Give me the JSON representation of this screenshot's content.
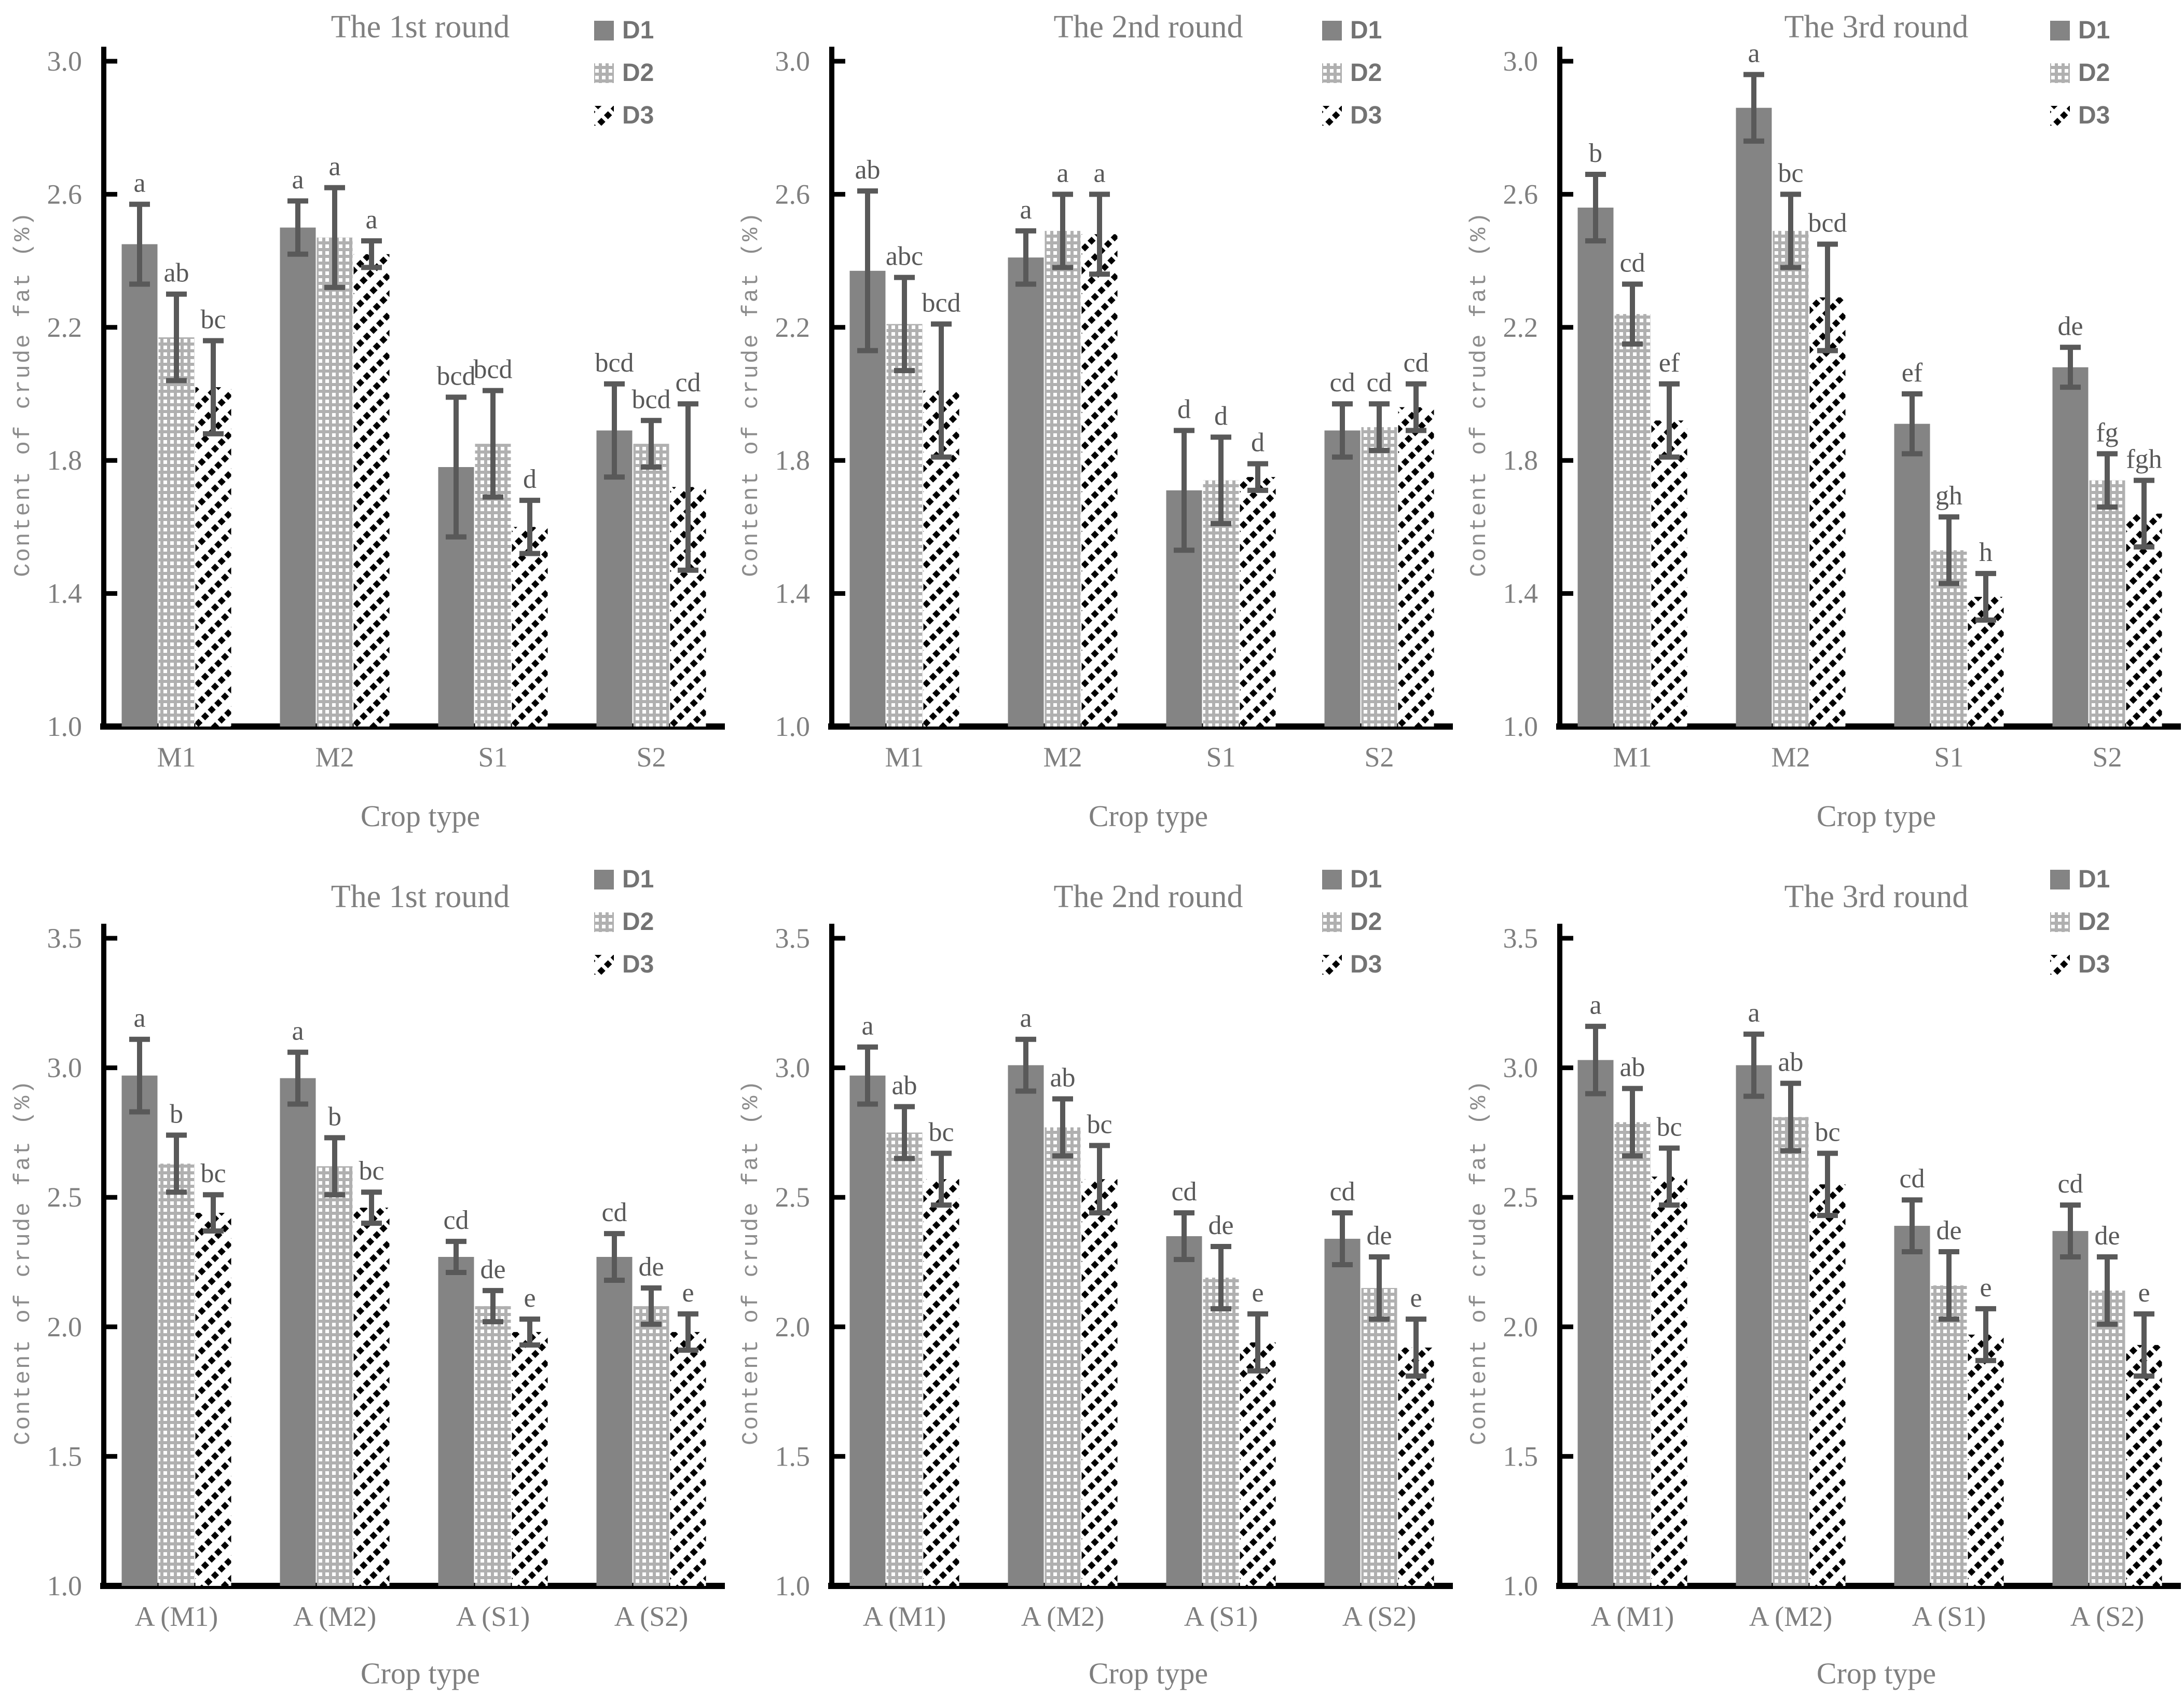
{
  "figure": {
    "background": "#ffffff",
    "ylabel": "Content of crude fat（%）",
    "xlabel": "Crop type",
    "legend": {
      "items": [
        {
          "label": "D1",
          "style": "solid"
        },
        {
          "label": "D2",
          "style": "dots"
        },
        {
          "label": "D3",
          "style": "hatch"
        }
      ]
    },
    "colors": {
      "bar_solid": "#848484",
      "dots_background": "#b0b0b0",
      "dots_dot": "#ffffff",
      "hatch_stripe": "#000000",
      "hatch_background": "#ffffff",
      "error_bar": "#595959",
      "letter_text": "#595959",
      "axis_line": "#000000",
      "gray_text": "#7f7f7f",
      "legend_text": "#737373"
    }
  },
  "chart_data": [
    {
      "type": "bar",
      "title": "The 1st round",
      "xlabel": "Crop type",
      "ylabel": "Content of crude fat（%）",
      "categories": [
        "M1",
        "M2",
        "S1",
        "S2"
      ],
      "ylim": [
        1.0,
        3.0
      ],
      "yticks": [
        1.0,
        1.4,
        1.8,
        2.2,
        2.6,
        3.0
      ],
      "grid": false,
      "legend_position": "top-right",
      "series": [
        {
          "name": "D1",
          "style": "solid",
          "values": [
            2.45,
            2.5,
            1.78,
            1.89
          ],
          "errors": [
            0.12,
            0.08,
            0.21,
            0.14
          ],
          "letters": [
            "a",
            "a",
            "bcd",
            "bcd"
          ]
        },
        {
          "name": "D2",
          "style": "dots",
          "values": [
            2.17,
            2.47,
            1.85,
            1.85
          ],
          "errors": [
            0.13,
            0.15,
            0.16,
            0.07
          ],
          "letters": [
            "ab",
            "a",
            "bcd",
            "bcd"
          ]
        },
        {
          "name": "D3",
          "style": "hatch",
          "values": [
            2.02,
            2.42,
            1.6,
            1.72
          ],
          "errors": [
            0.14,
            0.04,
            0.08,
            0.25
          ],
          "letters": [
            "bc",
            "a",
            "d",
            "cd"
          ]
        }
      ]
    },
    {
      "type": "bar",
      "title": "The 2nd round",
      "xlabel": "Crop type",
      "ylabel": "Content of crude fat（%）",
      "categories": [
        "M1",
        "M2",
        "S1",
        "S2"
      ],
      "ylim": [
        1.0,
        3.0
      ],
      "yticks": [
        1.0,
        1.4,
        1.8,
        2.2,
        2.6,
        3.0
      ],
      "grid": false,
      "legend_position": "top-right",
      "series": [
        {
          "name": "D1",
          "style": "solid",
          "values": [
            2.37,
            2.41,
            1.71,
            1.89
          ],
          "errors": [
            0.24,
            0.08,
            0.18,
            0.08
          ],
          "letters": [
            "ab",
            "a",
            "d",
            "cd"
          ]
        },
        {
          "name": "D2",
          "style": "dots",
          "values": [
            2.21,
            2.49,
            1.74,
            1.9
          ],
          "errors": [
            0.14,
            0.11,
            0.13,
            0.07
          ],
          "letters": [
            "abc",
            "a",
            "d",
            "cd"
          ]
        },
        {
          "name": "D3",
          "style": "hatch",
          "values": [
            2.01,
            2.48,
            1.75,
            1.96
          ],
          "errors": [
            0.2,
            0.12,
            0.04,
            0.07
          ],
          "letters": [
            "bcd",
            "a",
            "d",
            "cd"
          ]
        }
      ]
    },
    {
      "type": "bar",
      "title": "The 3rd round",
      "xlabel": "Crop type",
      "ylabel": "Content of crude fat（%）",
      "categories": [
        "M1",
        "M2",
        "S1",
        "S2"
      ],
      "ylim": [
        1.0,
        3.0
      ],
      "yticks": [
        1.0,
        1.4,
        1.8,
        2.2,
        2.6,
        3.0
      ],
      "grid": false,
      "legend_position": "top-right",
      "series": [
        {
          "name": "D1",
          "style": "solid",
          "values": [
            2.56,
            2.86,
            1.91,
            2.08
          ],
          "errors": [
            0.1,
            0.1,
            0.09,
            0.06
          ],
          "letters": [
            "b",
            "a",
            "ef",
            "de"
          ]
        },
        {
          "name": "D2",
          "style": "dots",
          "values": [
            2.24,
            2.49,
            1.53,
            1.74
          ],
          "errors": [
            0.09,
            0.11,
            0.1,
            0.08
          ],
          "letters": [
            "cd",
            "bc",
            "gh",
            "fg"
          ]
        },
        {
          "name": "D3",
          "style": "hatch",
          "values": [
            1.92,
            2.29,
            1.39,
            1.64
          ],
          "errors": [
            0.11,
            0.16,
            0.07,
            0.1
          ],
          "letters": [
            "ef",
            "bcd",
            "h",
            "fgh"
          ]
        }
      ]
    },
    {
      "type": "bar",
      "title": "The 1st round",
      "xlabel": "Crop type",
      "ylabel": "Content of crude fat（%）",
      "categories": [
        "A（M1）",
        "A（M2）",
        "A（S1）",
        "A（S2）"
      ],
      "ylim": [
        1.0,
        3.5
      ],
      "yticks": [
        1.0,
        1.5,
        2.0,
        2.5,
        3.0,
        3.5
      ],
      "grid": false,
      "legend_position": "top-right",
      "series": [
        {
          "name": "D1",
          "style": "solid",
          "values": [
            2.97,
            2.96,
            2.27,
            2.27
          ],
          "errors": [
            0.14,
            0.1,
            0.06,
            0.09
          ],
          "letters": [
            "a",
            "a",
            "cd",
            "cd"
          ]
        },
        {
          "name": "D2",
          "style": "dots",
          "values": [
            2.63,
            2.62,
            2.08,
            2.08
          ],
          "errors": [
            0.11,
            0.11,
            0.06,
            0.07
          ],
          "letters": [
            "b",
            "b",
            "de",
            "de"
          ]
        },
        {
          "name": "D3",
          "style": "hatch",
          "values": [
            2.44,
            2.46,
            1.98,
            1.98
          ],
          "errors": [
            0.07,
            0.06,
            0.05,
            0.07
          ],
          "letters": [
            "bc",
            "bc",
            "e",
            "e"
          ]
        }
      ]
    },
    {
      "type": "bar",
      "title": "The 2nd round",
      "xlabel": "Crop type",
      "ylabel": "Content of crude fat（%）",
      "categories": [
        "A（M1）",
        "A（M2）",
        "A（S1）",
        "A（S2）"
      ],
      "ylim": [
        1.0,
        3.5
      ],
      "yticks": [
        1.0,
        1.5,
        2.0,
        2.5,
        3.0,
        3.5
      ],
      "grid": false,
      "legend_position": "top-right",
      "series": [
        {
          "name": "D1",
          "style": "solid",
          "values": [
            2.97,
            3.01,
            2.35,
            2.34
          ],
          "errors": [
            0.11,
            0.1,
            0.09,
            0.1
          ],
          "letters": [
            "a",
            "a",
            "cd",
            "cd"
          ]
        },
        {
          "name": "D2",
          "style": "dots",
          "values": [
            2.75,
            2.77,
            2.19,
            2.15
          ],
          "errors": [
            0.1,
            0.11,
            0.12,
            0.12
          ],
          "letters": [
            "ab",
            "ab",
            "de",
            "de"
          ]
        },
        {
          "name": "D3",
          "style": "hatch",
          "values": [
            2.57,
            2.57,
            1.94,
            1.92
          ],
          "errors": [
            0.1,
            0.13,
            0.11,
            0.11
          ],
          "letters": [
            "bc",
            "bc",
            "e",
            "e"
          ]
        }
      ]
    },
    {
      "type": "bar",
      "title": "The 3rd round",
      "xlabel": "Crop type",
      "ylabel": "Content of crude fat（%）",
      "categories": [
        "A（M1）",
        "A（M2）",
        "A（S1）",
        "A（S2）"
      ],
      "ylim": [
        1.0,
        3.5
      ],
      "yticks": [
        1.0,
        1.5,
        2.0,
        2.5,
        3.0,
        3.5
      ],
      "grid": false,
      "legend_position": "top-right",
      "series": [
        {
          "name": "D1",
          "style": "solid",
          "values": [
            3.03,
            3.01,
            2.39,
            2.37
          ],
          "errors": [
            0.13,
            0.12,
            0.1,
            0.1
          ],
          "letters": [
            "a",
            "a",
            "cd",
            "cd"
          ]
        },
        {
          "name": "D2",
          "style": "dots",
          "values": [
            2.79,
            2.81,
            2.16,
            2.14
          ],
          "errors": [
            0.13,
            0.13,
            0.13,
            0.13
          ],
          "letters": [
            "ab",
            "ab",
            "de",
            "de"
          ]
        },
        {
          "name": "D3",
          "style": "hatch",
          "values": [
            2.58,
            2.55,
            1.97,
            1.93
          ],
          "errors": [
            0.11,
            0.12,
            0.1,
            0.12
          ],
          "letters": [
            "bc",
            "bc",
            "e",
            "e"
          ]
        }
      ]
    }
  ]
}
